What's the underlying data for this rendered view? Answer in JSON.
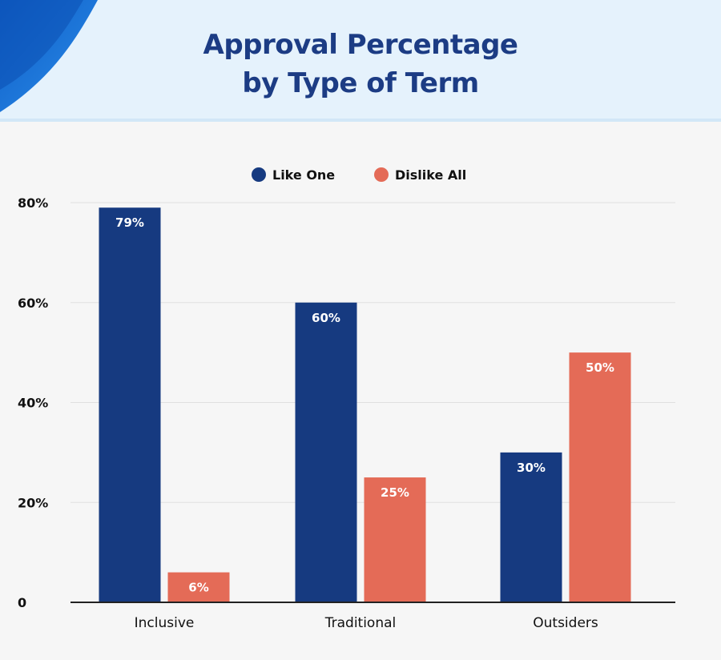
{
  "title_lines": [
    "Approval Percentage",
    "by Type of Term"
  ],
  "colors": {
    "like_one": "#163a80",
    "dislike_all": "#e46b57",
    "title": "#1c3c84",
    "header_bg": "#e5f2fc",
    "accent": "#1a6fd4"
  },
  "chart_data": {
    "type": "bar",
    "title": "Approval Percentage by Type of Term",
    "categories": [
      "Inclusive",
      "Traditional",
      "Outsiders"
    ],
    "series": [
      {
        "name": "Like One",
        "values": [
          79,
          60,
          30
        ],
        "labels": [
          "79%",
          "60%",
          "30%"
        ]
      },
      {
        "name": "Dislike All",
        "values": [
          6,
          25,
          50
        ],
        "labels": [
          "6%",
          "25%",
          "50%"
        ]
      }
    ],
    "yticks": [
      0,
      20,
      40,
      60,
      80
    ],
    "ytick_labels": [
      "0",
      "20%",
      "40%",
      "60%",
      "80%"
    ],
    "ylim": [
      0,
      80
    ],
    "grid": true,
    "legend": "top-center",
    "xlabel": "",
    "ylabel": ""
  }
}
